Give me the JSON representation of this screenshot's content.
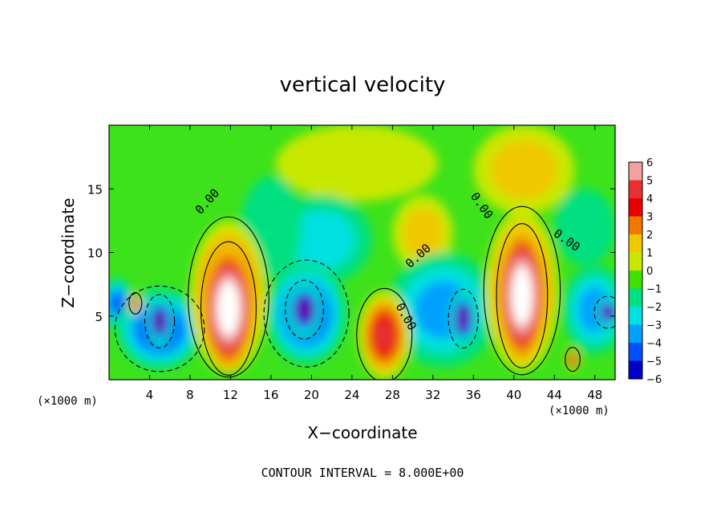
{
  "chart_data": {
    "type": "heatmap",
    "title": "vertical velocity",
    "xlabel": "X−coordinate",
    "ylabel": "Z−coordinate",
    "x_unit_left": "(×1000 m)",
    "x_unit_right": "(×1000 m)",
    "footer": "CONTOUR INTERVAL = 8.000E+00",
    "xlim": [
      0,
      50
    ],
    "ylim": [
      0,
      20
    ],
    "x_ticks": [
      4,
      8,
      12,
      16,
      20,
      24,
      28,
      32,
      36,
      40,
      44,
      48
    ],
    "x_tick_labels": [
      "4",
      "8",
      "12",
      "16",
      "20",
      "24",
      "28",
      "32",
      "36",
      "40",
      "44",
      "48"
    ],
    "y_ticks": [
      5,
      10,
      15
    ],
    "y_tick_labels": [
      "5",
      "10",
      "15"
    ],
    "colorbar": {
      "levels": [
        6,
        5,
        4,
        3,
        2,
        1,
        0,
        -1,
        -2,
        -3,
        -4,
        -5,
        -6
      ],
      "labels": [
        "6",
        "5",
        "4",
        "3",
        "2",
        "1",
        "0",
        "−1",
        "−2",
        "−3",
        "−4",
        "−5",
        "−6"
      ],
      "colors": [
        "#f2a0a0",
        "#e83030",
        "#e80000",
        "#f07800",
        "#f0c800",
        "#c8e800",
        "#40e000",
        "#00e080",
        "#00e0e0",
        "#00a0ff",
        "#0050ff",
        "#0000c8",
        "#6000b0"
      ]
    },
    "contour_labels": [
      {
        "text": "0.00",
        "x": 10.0,
        "z": 13.8,
        "rot": -48
      },
      {
        "text": "0.00",
        "x": 30.8,
        "z": 9.5,
        "rot": -42
      },
      {
        "text": "0.00",
        "x": 29.0,
        "z": 4.8,
        "rot": 60
      },
      {
        "text": "0.00",
        "x": 36.5,
        "z": 13.5,
        "rot": 55
      },
      {
        "text": "0.00",
        "x": 45.0,
        "z": 10.7,
        "rot": 35
      }
    ],
    "background": "#3de21a",
    "blobs": [
      {
        "x": 24.5,
        "z": 17.0,
        "rx": 8.0,
        "rz": 3.0,
        "v": 1
      },
      {
        "x": 41.0,
        "z": 16.5,
        "rx": 5.0,
        "rz": 3.5,
        "v": 1.5
      },
      {
        "x": 21.0,
        "z": 11.0,
        "rx": 5.0,
        "rz": 3.5,
        "v": -2
      },
      {
        "x": 16.0,
        "z": 12.0,
        "rx": 3.0,
        "rz": 4.0,
        "v": -1
      },
      {
        "x": 31.0,
        "z": 11.5,
        "rx": 3.0,
        "rz": 3.0,
        "v": 1.5
      },
      {
        "x": 47.0,
        "z": 12.0,
        "rx": 3.0,
        "rz": 3.0,
        "v": -1
      },
      {
        "x": 0.8,
        "z": 6.0,
        "rx": 1.6,
        "rz": 2.0,
        "v": -4
      },
      {
        "x": 5.0,
        "z": 4.0,
        "rx": 4.2,
        "rz": 3.2,
        "v": -4.5
      },
      {
        "x": 19.5,
        "z": 5.2,
        "rx": 4.0,
        "rz": 4.0,
        "v": -4.5
      },
      {
        "x": 33.0,
        "z": 5.5,
        "rx": 5.5,
        "rz": 4.5,
        "v": -3
      },
      {
        "x": 48.0,
        "z": 5.5,
        "rx": 3.2,
        "rz": 3.5,
        "v": -3
      },
      {
        "x": 11.8,
        "z": 6.5,
        "rx": 3.8,
        "rz": 6.0,
        "v": 6.5
      },
      {
        "x": 40.8,
        "z": 7.0,
        "rx": 3.6,
        "rz": 6.3,
        "v": 6.5
      },
      {
        "x": 27.2,
        "z": 3.5,
        "rx": 2.6,
        "rz": 3.5,
        "v": 5
      },
      {
        "x": 2.6,
        "z": 6.0,
        "rx": 0.6,
        "rz": 0.8,
        "v": 4.5
      },
      {
        "x": 45.8,
        "z": 1.6,
        "rx": 0.7,
        "rz": 0.9,
        "v": 4.5
      },
      {
        "x": 5.0,
        "z": 4.6,
        "rx": 1.4,
        "rz": 2.0,
        "v": -7
      },
      {
        "x": 19.3,
        "z": 5.5,
        "rx": 1.8,
        "rz": 2.2,
        "v": -7
      },
      {
        "x": 35.0,
        "z": 4.8,
        "rx": 1.4,
        "rz": 2.2,
        "v": -7
      },
      {
        "x": 49.3,
        "z": 5.3,
        "rx": 1.3,
        "rz": 1.2,
        "v": -7
      },
      {
        "x": 11.8,
        "z": 5.6,
        "rx": 2.6,
        "rz": 5.0,
        "v": 9
      },
      {
        "x": 40.8,
        "z": 6.6,
        "rx": 2.4,
        "rz": 5.4,
        "v": 9
      }
    ]
  }
}
